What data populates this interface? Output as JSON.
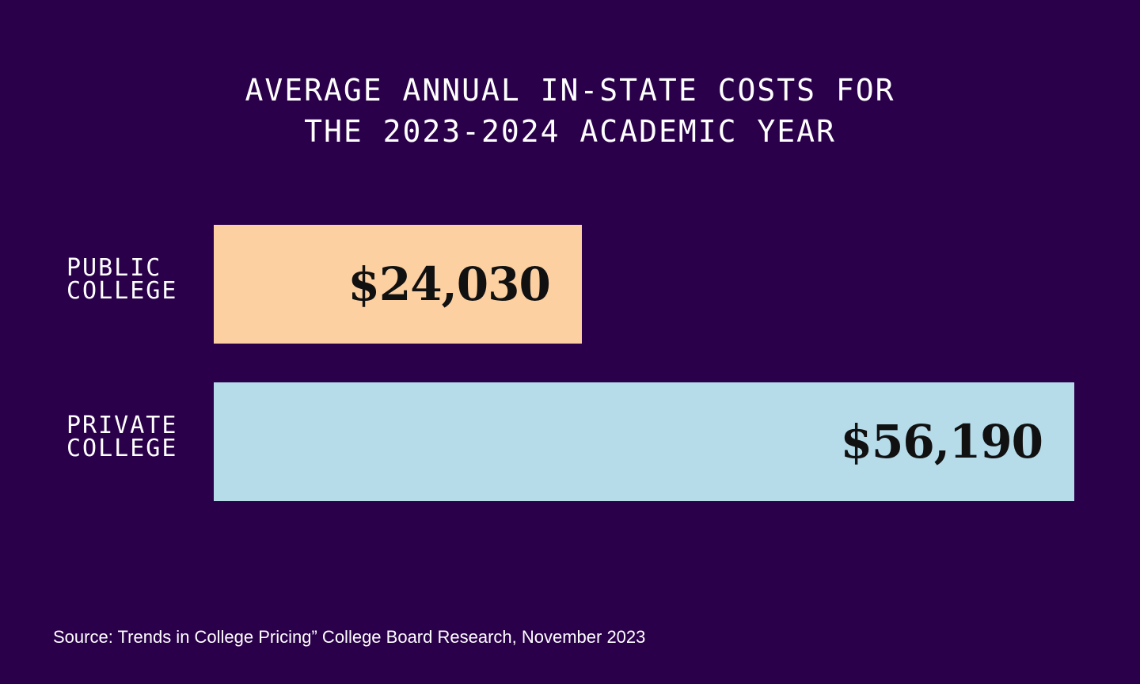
{
  "chart_data": {
    "type": "bar",
    "orientation": "horizontal",
    "title": [
      "AVERAGE ANNUAL IN-STATE COSTS FOR",
      "THE 2023-2024 ACADEMIC YEAR"
    ],
    "categories": [
      [
        "PUBLIC",
        "COLLEGE"
      ],
      [
        "PRIVATE",
        "COLLEGE"
      ]
    ],
    "values": [
      24030,
      56190
    ],
    "data_labels": [
      "$24,030",
      "$56,190"
    ],
    "colors": [
      "#fdd0a2",
      "#b6dcea"
    ],
    "xlim": [
      0,
      56190
    ],
    "grid": false,
    "xlabel": "",
    "ylabel": ""
  },
  "source": "Source: Trends in College Pricing” College Board Research, November 2023",
  "colors": {
    "background": "#2a004a",
    "text": "#ffffff"
  }
}
